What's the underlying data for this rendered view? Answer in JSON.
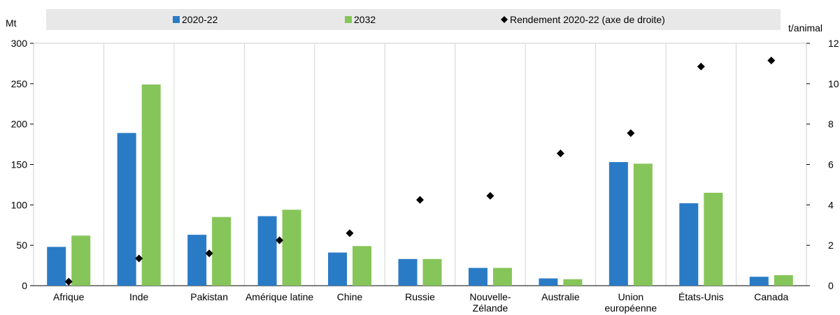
{
  "chart_data": {
    "type": "bar",
    "left_axis_unit": "Mt",
    "right_axis_unit": "t/animal",
    "ylim": [
      0,
      300
    ],
    "y_ticks": [
      0,
      50,
      100,
      150,
      200,
      250,
      300
    ],
    "y2lim": [
      0,
      12
    ],
    "y2_ticks": [
      0,
      2,
      4,
      6,
      8,
      10,
      12
    ],
    "grid": "vertical separators between categories",
    "legend_position": "top",
    "categories": [
      [
        "Afrique"
      ],
      [
        "Inde"
      ],
      [
        "Pakistan"
      ],
      [
        "Amérique latine"
      ],
      [
        "Chine"
      ],
      [
        "Russie"
      ],
      [
        "Nouvelle-",
        "Zélande"
      ],
      [
        "Australie"
      ],
      [
        "Union",
        "européenne"
      ],
      [
        "États-Unis"
      ],
      [
        "Canada"
      ]
    ],
    "series": [
      {
        "name": "2020-22",
        "type": "bar",
        "axis": "left",
        "color": "#2a7bc6",
        "values": [
          48,
          189,
          63,
          86,
          41,
          33,
          22,
          9,
          153,
          102,
          11
        ]
      },
      {
        "name": "2032",
        "type": "bar",
        "axis": "left",
        "color": "#86c55a",
        "values": [
          62,
          249,
          85,
          94,
          49,
          33,
          22,
          8,
          151,
          115,
          13
        ]
      },
      {
        "name": "Rendement 2020-22 (axe de droite)",
        "type": "scatter",
        "axis": "right",
        "color": "#000000",
        "marker": "diamond",
        "values": [
          0.2,
          1.35,
          1.6,
          2.25,
          2.6,
          4.25,
          4.45,
          6.55,
          7.55,
          10.85,
          11.15
        ]
      }
    ]
  }
}
